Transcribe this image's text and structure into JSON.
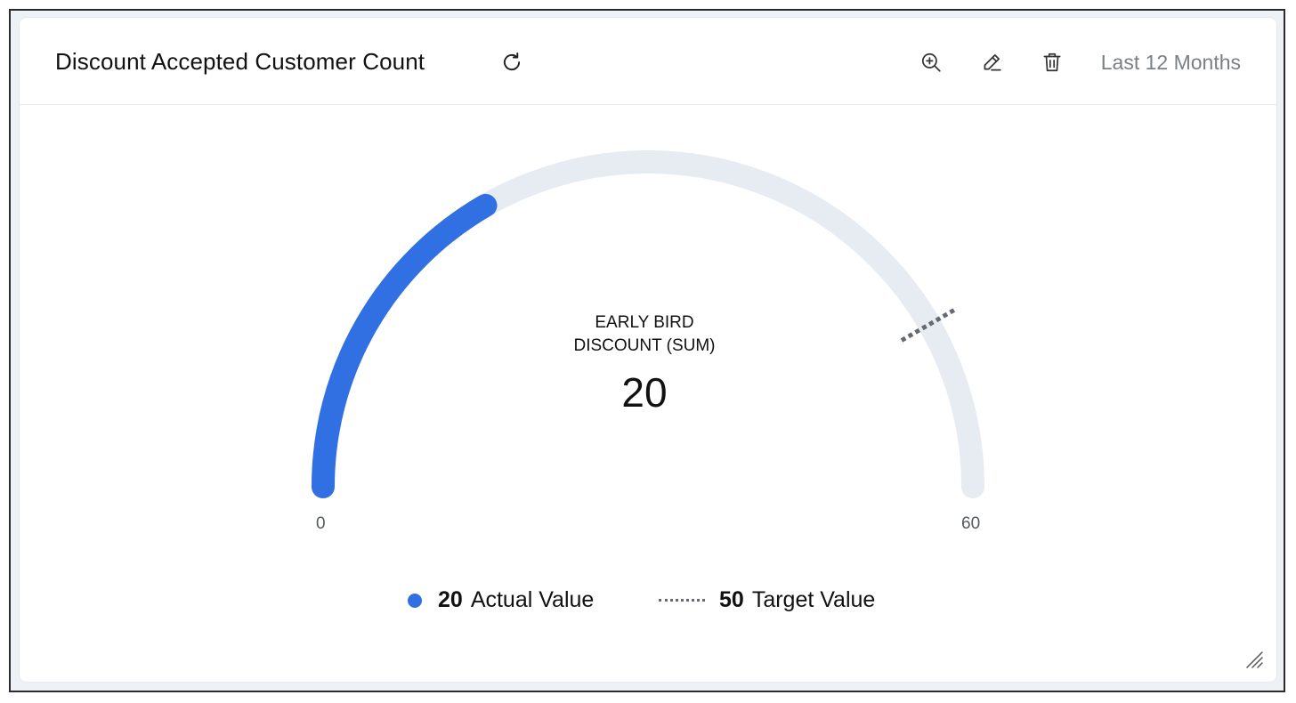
{
  "widget": {
    "title": "Discount Accepted Customer Count",
    "period_label": "Last 12 Months",
    "icons": {
      "refresh": "refresh-icon",
      "zoom": "zoom-in-icon",
      "edit": "pencil-icon",
      "delete": "trash-icon",
      "resize": "resize-handle-icon"
    }
  },
  "chart_data": {
    "type": "gauge",
    "metric_label": "EARLY BIRD DISCOUNT (SUM)",
    "metric_label_lines": [
      "EARLY BIRD",
      "DISCOUNT (SUM)"
    ],
    "value": 20,
    "value_display": "20",
    "min": 0,
    "max": 60,
    "min_label": "0",
    "max_label": "60",
    "target": 50,
    "legend": [
      {
        "value": "20",
        "label": "Actual Value",
        "marker": "dot"
      },
      {
        "value": "50",
        "label": "Target Value",
        "marker": "dotted-line"
      }
    ],
    "colors": {
      "actual": "#3170e3",
      "track": "#e7ebf2",
      "target": "#666a70"
    }
  }
}
